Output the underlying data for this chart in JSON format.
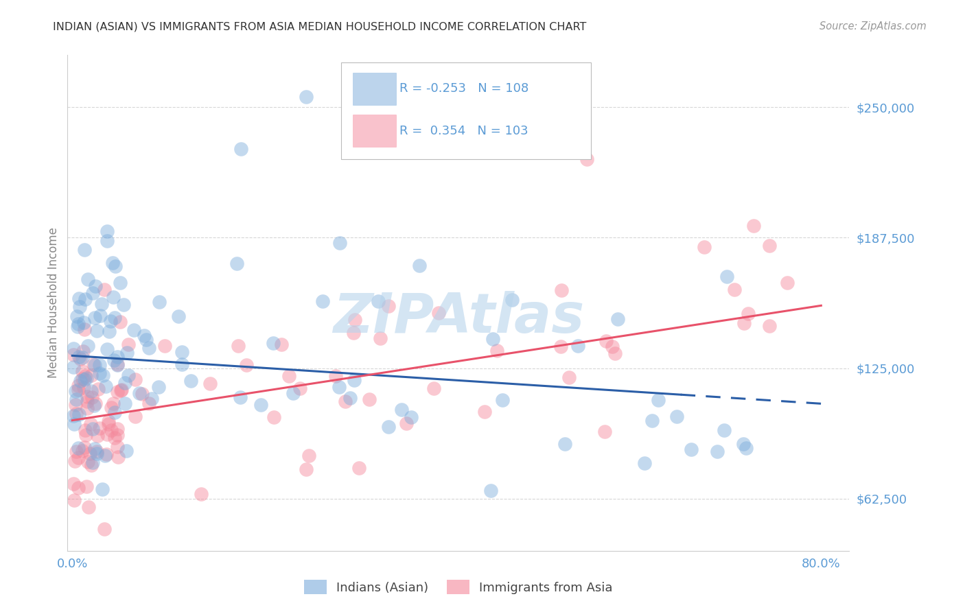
{
  "title": "INDIAN (ASIAN) VS IMMIGRANTS FROM ASIA MEDIAN HOUSEHOLD INCOME CORRELATION CHART",
  "source": "Source: ZipAtlas.com",
  "ylabel": "Median Household Income",
  "yticks": [
    62500,
    125000,
    187500,
    250000
  ],
  "ytick_labels": [
    "$62,500",
    "$125,000",
    "$187,500",
    "$250,000"
  ],
  "xlim": [
    -0.5,
    83
  ],
  "ylim": [
    37500,
    275000
  ],
  "legend1_r": "-0.253",
  "legend1_n": "108",
  "legend2_r": "0.354",
  "legend2_n": "103",
  "legend1_label": "Indians (Asian)",
  "legend2_label": "Immigrants from Asia",
  "blue_color": "#7AABDB",
  "pink_color": "#F4879A",
  "blue_line_color": "#2B5EA7",
  "pink_line_color": "#E8526A",
  "title_color": "#333333",
  "source_color": "#999999",
  "ytick_color": "#5B9BD5",
  "xtick_color": "#5B9BD5",
  "watermark_color": "#B8D4EC",
  "grid_color": "#CCCCCC",
  "blue_trend_x0": 0,
  "blue_trend_x1": 80,
  "blue_trend_y0": 131000,
  "blue_trend_y1": 108000,
  "blue_solid_end": 65,
  "pink_trend_y0": 100000,
  "pink_trend_y1": 155000
}
